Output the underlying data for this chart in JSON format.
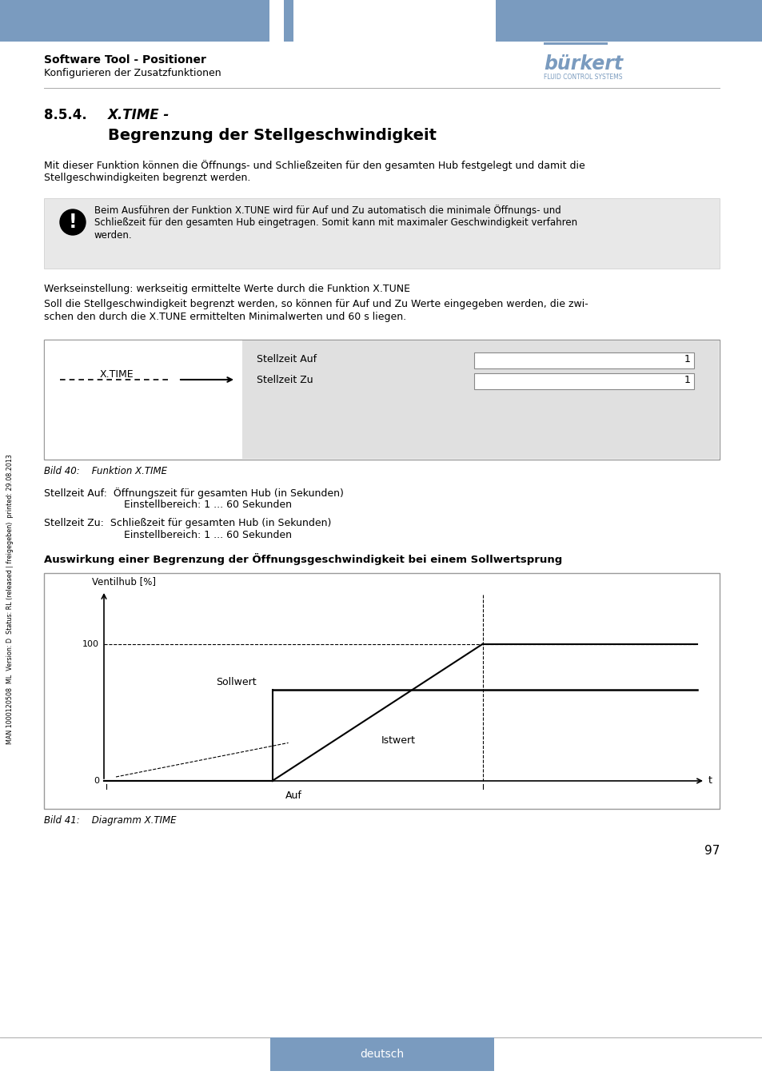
{
  "header_color": "#7a9bbf",
  "header_title": "Software Tool - Positioner",
  "header_subtitle": "Konfigurieren der Zusatzfunktionen",
  "section_number": "8.5.4.",
  "section_title_italic": "X.TIME -",
  "section_title_bold": "Begrenzung der Stellgeschwindigkeit",
  "body_text1_line1": "Mit dieser Funktion können die Öffnungs- und Schließzeiten für den gesamten Hub festgelegt und damit die",
  "body_text1_line2": "Stellgeschwindigkeiten begrenzt werden.",
  "warning_line1": "Beim Ausführen der Funktion X.TUNE wird für Auf und Zu automatisch die minimale Öffnungs- und",
  "warning_line2": "Schließzeit für den gesamten Hub eingetragen. Somit kann mit maximaler Geschwindigkeit verfahren",
  "warning_line3": "werden.",
  "body_text2": "Werkseinstellung: werkseitig ermittelte Werte durch die Funktion X.TUNE",
  "body_text3_line1": "Soll die Stellgeschwindigkeit begrenzt werden, so können für Auf und Zu Werte eingegeben werden, die zwi-",
  "body_text3_line2": "schen den durch die X.TUNE ermittelten Minimalwerten und 60 s liegen.",
  "diagram1_label_left": "X.TIME",
  "diagram1_label1": "Stellzeit Auf",
  "diagram1_label2": "Stellzeit Zu",
  "diagram1_val1": "1",
  "diagram1_val2": "1",
  "fig40_caption": "Bild 40:    Funktion X.TIME",
  "stellzeit_auf_line1": "Stellzeit Auf:  Öffnungszeit für gesamten Hub (in Sekunden)",
  "stellzeit_auf_line2": "Einstellbereich: 1 ... 60 Sekunden",
  "stellzeit_zu_line1": "Stellzeit Zu:  Schließzeit für gesamten Hub (in Sekunden)",
  "stellzeit_zu_line2": "Einstellbereich: 1 ... 60 Sekunden",
  "auswirkung_title": "Auswirkung einer Begrenzung der Öffnungsgeschwindigkeit bei einem Sollwertsprung",
  "diagram2_ylabel": "Ventilhub [%]",
  "diagram2_xlabel": "t",
  "diagram2_y100": "100",
  "diagram2_y0": "0",
  "diagram2_x_label": "Auf",
  "diagram2_sollwert": "Sollwert",
  "diagram2_istwert": "Istwert",
  "fig41_caption": "Bild 41:    Diagramm X.TIME",
  "page_number": "97",
  "side_text": "MAN 1000120508  ML  Version: D  Status: RL (released | freigegeben)  printed: 29.08.2013",
  "footer_text": "deutsch",
  "footer_color": "#7a9bbf",
  "bg_color": "#ffffff",
  "text_color": "#000000",
  "gray_bg": "#e0e0e0",
  "warn_bg": "#e8e8e8"
}
